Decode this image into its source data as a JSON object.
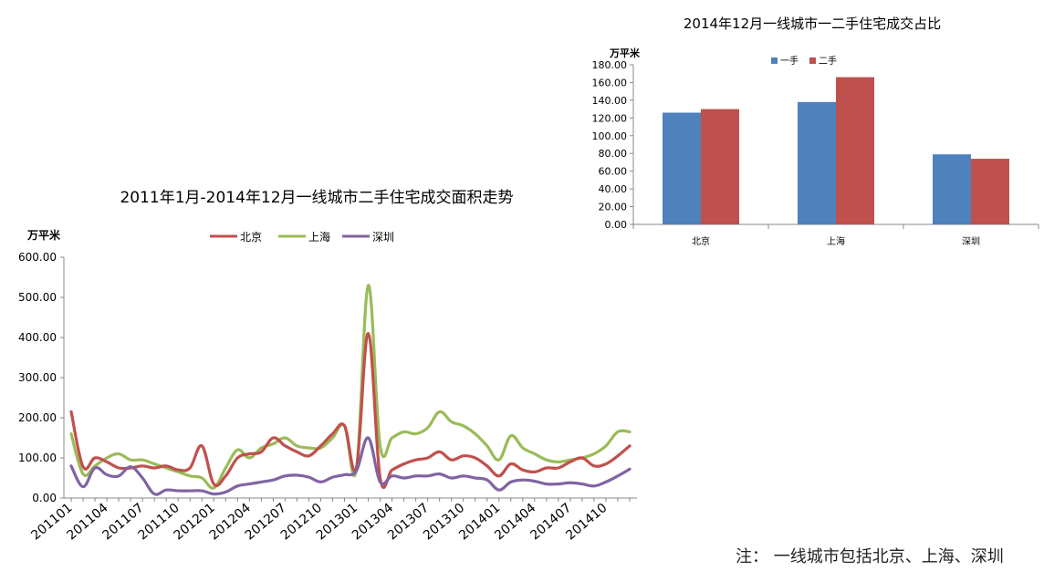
{
  "note": "注： 一线城市包括北京、上海、深圳",
  "chart_data": [
    {
      "type": "line",
      "title": "2011年1月-2014年12月一线城市二手住宅成交面积走势",
      "ylabel": "万平米",
      "ylim": [
        0,
        600
      ],
      "yticks": [
        "0.00",
        "100.00",
        "200.00",
        "300.00",
        "400.00",
        "500.00",
        "600.00"
      ],
      "xtick_labels": [
        "201101",
        "201104",
        "201107",
        "201110",
        "201201",
        "201204",
        "201207",
        "201210",
        "201301",
        "201304",
        "201307",
        "201310",
        "201401",
        "201404",
        "201407",
        "201410"
      ],
      "legend_position": "top-center",
      "x": [
        "201101",
        "201102",
        "201103",
        "201104",
        "201105",
        "201106",
        "201107",
        "201108",
        "201109",
        "201110",
        "201111",
        "201112",
        "201201",
        "201202",
        "201203",
        "201204",
        "201205",
        "201206",
        "201207",
        "201208",
        "201209",
        "201210",
        "201211",
        "201212",
        "201301",
        "201302",
        "201303",
        "201304",
        "201305",
        "201306",
        "201307",
        "201308",
        "201309",
        "201310",
        "201311",
        "201312",
        "201401",
        "201402",
        "201403",
        "201404",
        "201405",
        "201406",
        "201407",
        "201408",
        "201409",
        "201410",
        "201411",
        "201412"
      ],
      "series": [
        {
          "name": "北京",
          "color": "#c0504d",
          "values": [
            215,
            78,
            100,
            90,
            75,
            75,
            80,
            75,
            80,
            70,
            75,
            130,
            35,
            55,
            100,
            110,
            115,
            150,
            130,
            115,
            105,
            130,
            160,
            180,
            75,
            410,
            50,
            70,
            85,
            95,
            100,
            115,
            95,
            105,
            100,
            80,
            55,
            85,
            70,
            65,
            75,
            75,
            90,
            100,
            80,
            85,
            105,
            130
          ]
        },
        {
          "name": "上海",
          "color": "#9bbb59",
          "values": [
            160,
            60,
            80,
            100,
            110,
            95,
            95,
            85,
            75,
            65,
            55,
            50,
            25,
            75,
            120,
            100,
            125,
            135,
            150,
            130,
            125,
            125,
            150,
            180,
            70,
            530,
            130,
            150,
            165,
            160,
            175,
            215,
            190,
            180,
            160,
            130,
            95,
            155,
            125,
            110,
            95,
            90,
            95,
            100,
            110,
            130,
            165,
            165
          ]
        },
        {
          "name": "深圳",
          "color": "#8064a2",
          "values": [
            80,
            28,
            75,
            58,
            55,
            78,
            50,
            10,
            20,
            18,
            18,
            18,
            10,
            15,
            30,
            35,
            40,
            45,
            55,
            57,
            52,
            40,
            52,
            58,
            68,
            150,
            40,
            55,
            50,
            55,
            55,
            60,
            50,
            55,
            50,
            45,
            20,
            40,
            45,
            42,
            35,
            35,
            38,
            35,
            30,
            40,
            55,
            72
          ]
        }
      ]
    },
    {
      "type": "bar",
      "title": "2014年12月一线城市一二手住宅成交占比",
      "ylabel": "万平米",
      "ylim": [
        0,
        180
      ],
      "yticks": [
        "0.00",
        "20.00",
        "40.00",
        "60.00",
        "80.00",
        "100.00",
        "120.00",
        "140.00",
        "160.00",
        "180.00"
      ],
      "categories": [
        "北京",
        "上海",
        "深圳"
      ],
      "legend_position": "top-center",
      "series": [
        {
          "name": "一手",
          "color": "#4f81bd",
          "values": [
            126,
            138,
            79
          ]
        },
        {
          "name": "二手",
          "color": "#c0504d",
          "values": [
            130,
            166,
            74
          ]
        }
      ]
    }
  ]
}
